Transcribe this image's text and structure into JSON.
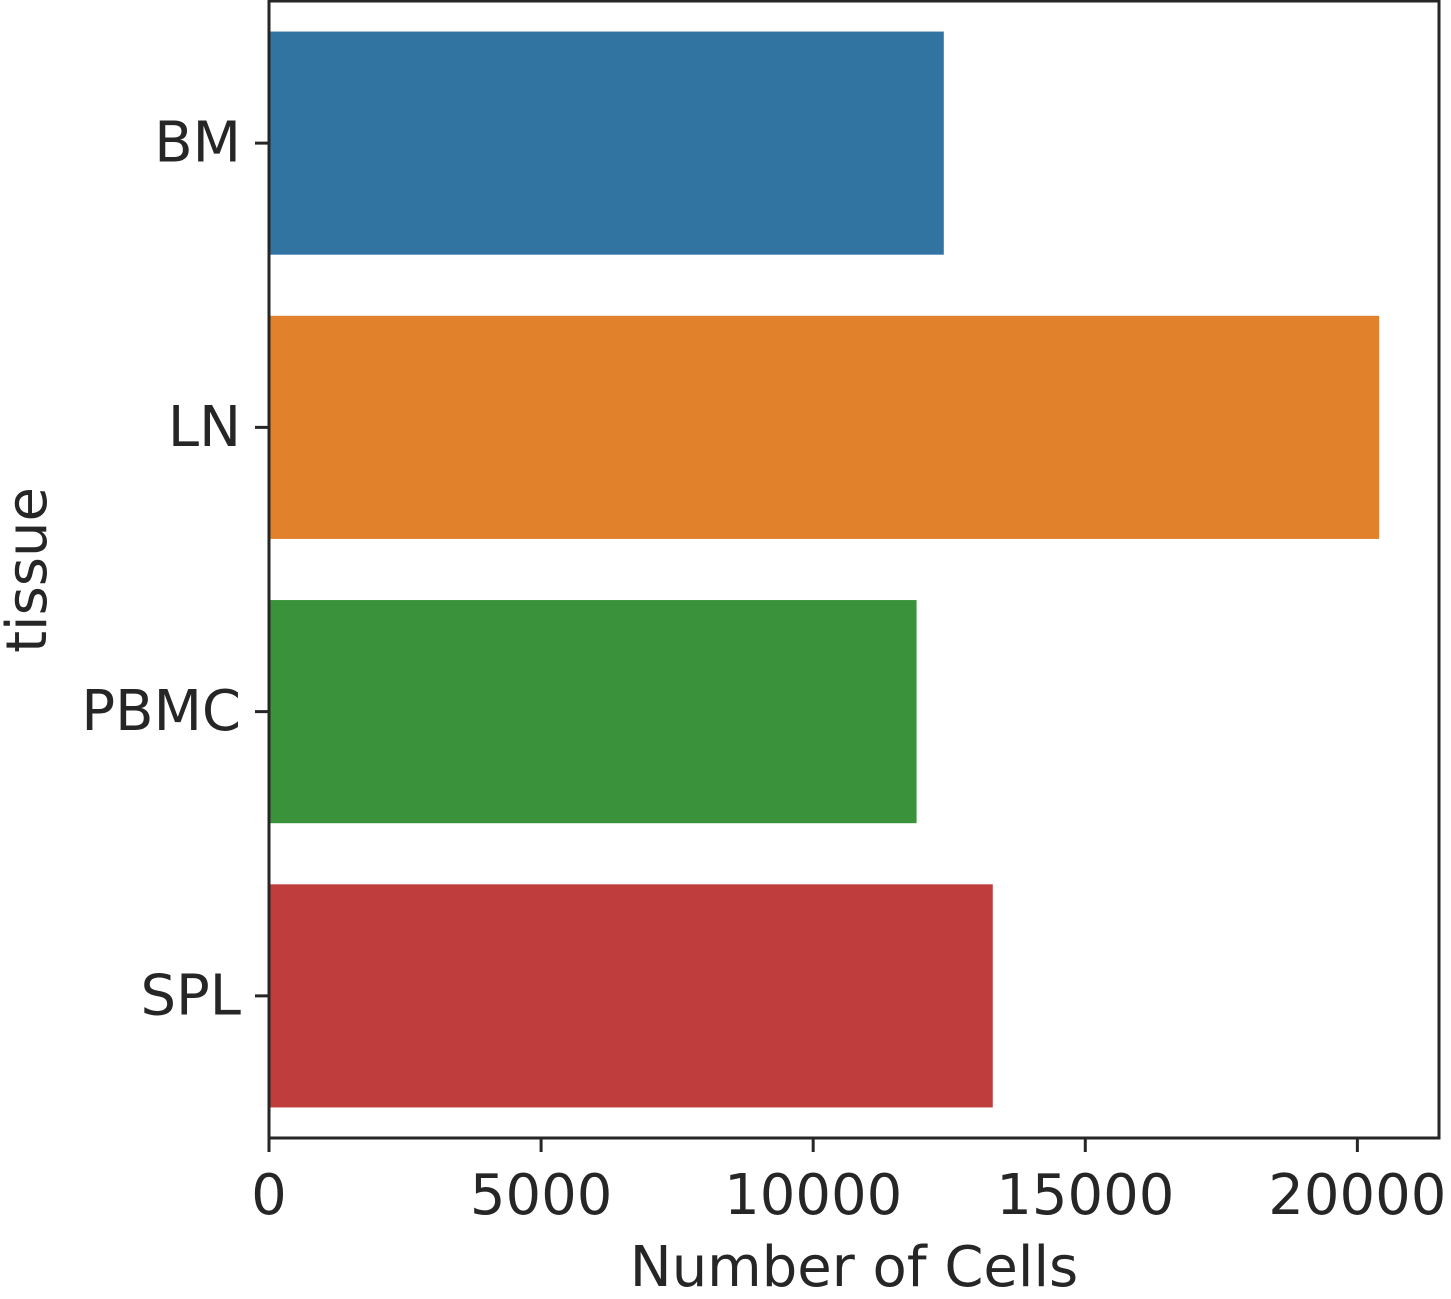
{
  "chart_data": {
    "type": "bar",
    "orientation": "horizontal",
    "categories": [
      "BM",
      "LN",
      "PBMC",
      "SPL"
    ],
    "values": [
      12400,
      20400,
      11900,
      13300
    ],
    "colors": [
      "#3274a1",
      "#e1812c",
      "#3a923a",
      "#c03d3e"
    ],
    "xlabel": "Number of Cells",
    "ylabel": "tissue",
    "xlim": [
      0,
      21500
    ],
    "xticks": [
      0,
      5000,
      10000,
      15000,
      20000
    ],
    "xtick_labels": [
      "0",
      "5000",
      "10000",
      "15000",
      "20000"
    ],
    "grid": false,
    "legend": "none"
  }
}
